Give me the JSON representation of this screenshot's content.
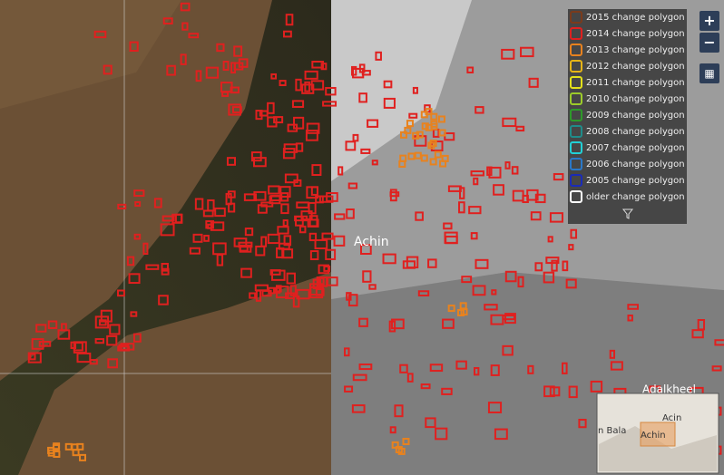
{
  "legend": {
    "items": [
      {
        "label": "2015 change polygon",
        "color": "#7a3b1c"
      },
      {
        "label": "2014 change polygon",
        "color": "#e0201f"
      },
      {
        "label": "2013 change polygon",
        "color": "#e8821e"
      },
      {
        "label": "2012 change polygon",
        "color": "#e6b417"
      },
      {
        "label": "2011 change polygon",
        "color": "#e3e01a"
      },
      {
        "label": "2010 change polygon",
        "color": "#9ccc2a"
      },
      {
        "label": "2009 change polygon",
        "color": "#2e9a2a"
      },
      {
        "label": "2008 change polygon",
        "color": "#1f8c8a"
      },
      {
        "label": "2007 change polygon",
        "color": "#22d0d6"
      },
      {
        "label": "2006 change polygon",
        "color": "#2a78c8"
      },
      {
        "label": "2005 change polygon",
        "color": "#1a2bb8"
      },
      {
        "label": "older change polygon",
        "color": "#ffffff"
      }
    ]
  },
  "controls": {
    "zoom_in": "+",
    "zoom_out": "−"
  },
  "places": [
    {
      "label": "Achin"
    },
    {
      "label": "Adalkheel"
    }
  ],
  "minimap": {
    "labels": [
      "Acin",
      "Achin",
      "n Bala"
    ]
  }
}
